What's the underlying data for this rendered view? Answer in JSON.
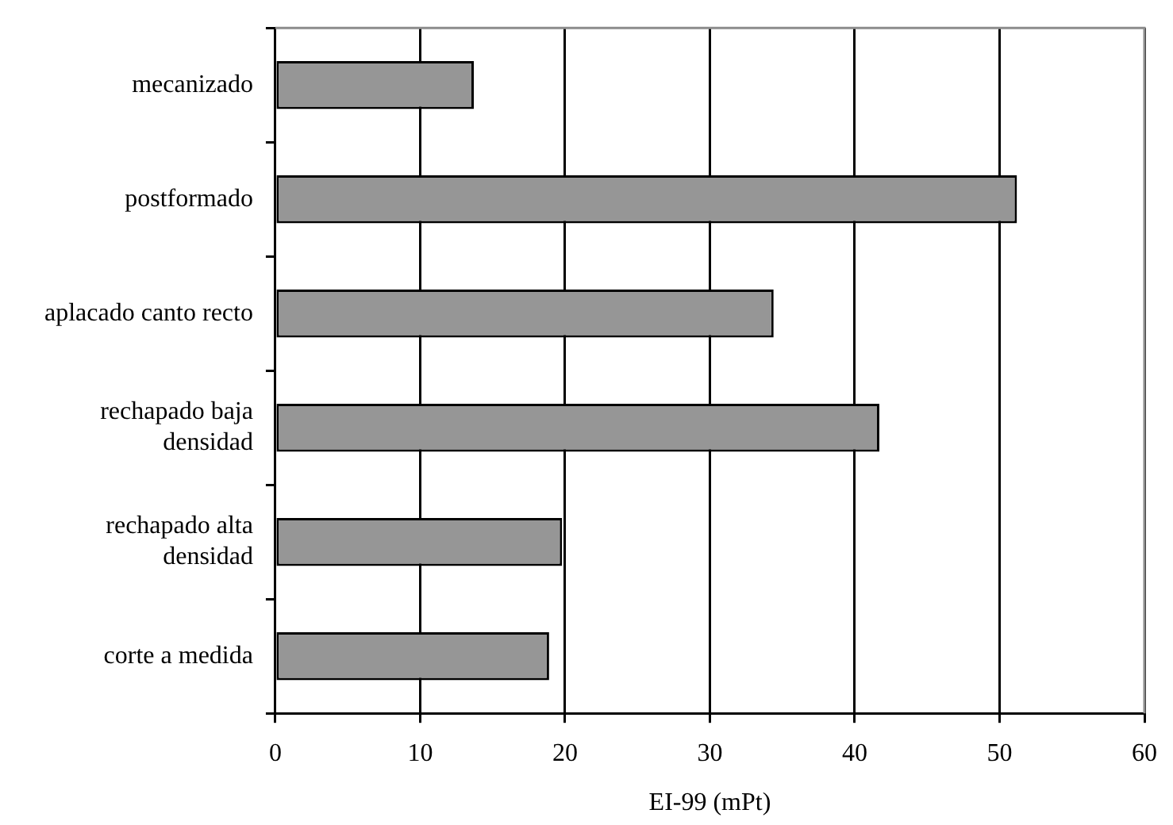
{
  "chart_data": {
    "type": "bar",
    "orientation": "horizontal",
    "xlabel": "EI-99 (mPt)",
    "categories": [
      "mecanizado",
      "postformado",
      "aplacado canto recto",
      "rechapado baja densidad",
      "rechapado alta densidad",
      "corte a medida"
    ],
    "values": [
      13.7,
      51.2,
      34.4,
      41.7,
      19.8,
      18.9
    ],
    "color": "#969696",
    "xlim": [
      0,
      60
    ],
    "xticks": [
      0,
      10,
      20,
      30,
      40,
      50,
      60
    ],
    "grid": "x"
  }
}
